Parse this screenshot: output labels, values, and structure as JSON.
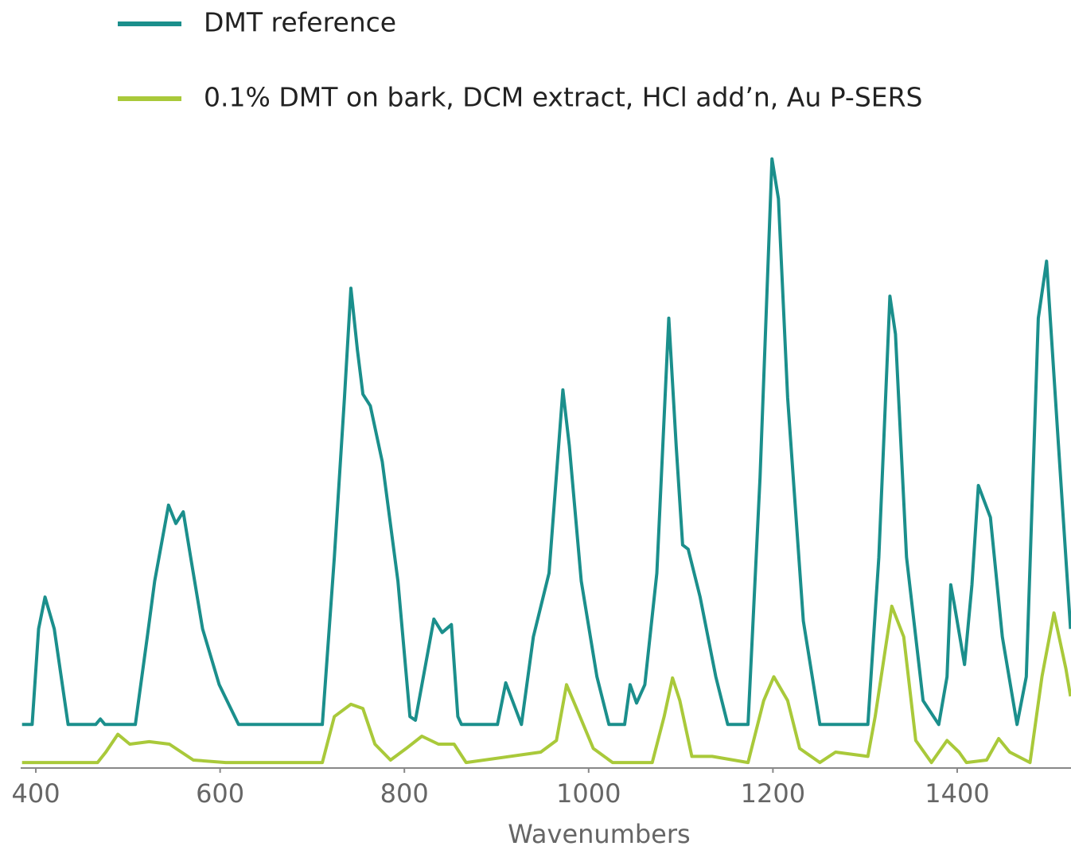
{
  "chart_data": {
    "type": "line",
    "xlabel": "Wavenumbers",
    "xlim": [
      384,
      1523
    ],
    "xticks": [
      400,
      600,
      800,
      1000,
      1200,
      1400
    ],
    "ylim": [
      0,
      100
    ],
    "series": [
      {
        "name": "DMT reference",
        "color": "#1b8f8c",
        "x": [
          385,
          396,
          403,
          410,
          420,
          435,
          465,
          470,
          475,
          508,
          521,
          529,
          544,
          552,
          560,
          568,
          581,
          599,
          620,
          711,
          724,
          735,
          742,
          749,
          755,
          763,
          776,
          793,
          806,
          812,
          832,
          841,
          851,
          858,
          862,
          901,
          910,
          927,
          940,
          957,
          972,
          979,
          992,
          1009,
          1022,
          1039,
          1045,
          1052,
          1061,
          1074,
          1087,
          1095,
          1102,
          1108,
          1121,
          1138,
          1151,
          1173,
          1186,
          1199,
          1206,
          1216,
          1233,
          1251,
          1303,
          1315,
          1327,
          1333,
          1345,
          1363,
          1380,
          1389,
          1393,
          1397,
          1408,
          1416,
          1423,
          1436,
          1449,
          1465,
          1475,
          1488,
          1497,
          1510,
          1523
        ],
        "values": [
          7.1,
          7.1,
          22.7,
          27.9,
          22.7,
          7.1,
          7.1,
          8,
          7.1,
          7.1,
          21.4,
          30.5,
          42.9,
          39.9,
          41.8,
          34.4,
          22.7,
          13.6,
          7.1,
          7.1,
          34.4,
          60.4,
          78.3,
          68.2,
          61,
          59.1,
          50,
          30.5,
          8.4,
          7.8,
          24.3,
          22.1,
          23.4,
          8.4,
          7.1,
          7.1,
          13.9,
          7.1,
          21.4,
          31.8,
          61.7,
          52.6,
          30.5,
          14.9,
          7.1,
          7.1,
          13.6,
          10.6,
          13.6,
          31.8,
          73.4,
          52.6,
          36.4,
          35.7,
          27.9,
          14.9,
          7.1,
          7.1,
          47.4,
          99.4,
          92.9,
          60.4,
          24,
          7.1,
          7.1,
          34.4,
          77,
          70.8,
          34.4,
          11,
          7.1,
          14.9,
          29.9,
          26.6,
          16.9,
          29.9,
          46.1,
          40.9,
          21.4,
          7.1,
          14.9,
          73.4,
          82.7,
          52.6,
          22.7
        ]
      },
      {
        "name": "0.1% DMT on bark, DCM extract, HCl add’n, Au P-SERS",
        "color": "#a9c93a",
        "x": [
          385,
          467,
          476,
          489,
          502,
          523,
          545,
          571,
          606,
          689,
          711,
          724,
          742,
          755,
          768,
          785,
          802,
          819,
          837,
          854,
          867,
          948,
          965,
          976,
          987,
          1005,
          1026,
          1069,
          1082,
          1091,
          1099,
          1112,
          1134,
          1173,
          1190,
          1201,
          1216,
          1229,
          1251,
          1268,
          1303,
          1311,
          1329,
          1342,
          1355,
          1372,
          1389,
          1402,
          1410,
          1432,
          1445,
          1457,
          1479,
          1492,
          1505,
          1518,
          1523
        ],
        "values": [
          0.9,
          0.9,
          2.6,
          5.5,
          3.9,
          4.3,
          3.9,
          1.3,
          0.9,
          0.9,
          0.9,
          8.4,
          10.4,
          9.7,
          3.9,
          1.3,
          3.2,
          5.2,
          3.9,
          3.9,
          0.9,
          2.6,
          4.5,
          13.6,
          9.7,
          3.2,
          0.9,
          0.9,
          8.4,
          14.7,
          11,
          1.9,
          1.9,
          0.9,
          11,
          14.9,
          11,
          3.2,
          0.9,
          2.6,
          1.9,
          8.4,
          26.4,
          21.4,
          4.5,
          0.9,
          4.5,
          2.6,
          0.9,
          1.3,
          4.8,
          2.6,
          0.9,
          14.9,
          25.3,
          16.2,
          11.7
        ]
      }
    ]
  }
}
